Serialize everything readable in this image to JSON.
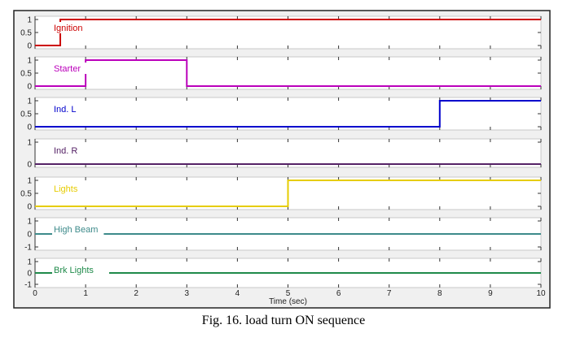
{
  "figure": {
    "caption": "Fig. 16. load turn ON sequence"
  },
  "chart_data": {
    "type": "line",
    "step": true,
    "xlabel": "Time (sec)",
    "xlim": [
      0,
      10
    ],
    "x_ticks": [
      0,
      1,
      2,
      3,
      4,
      5,
      6,
      7,
      8,
      9,
      10
    ],
    "grid": false,
    "legend": "none",
    "series": [
      {
        "name": "Ignition",
        "color": "#cc0000",
        "ylim": [
          0,
          1
        ],
        "y_ticks": [
          {
            "v": 0,
            "t": "0"
          },
          {
            "v": 0.5,
            "t": "0.5"
          },
          {
            "v": 1,
            "t": "1"
          }
        ],
        "points": [
          [
            0,
            0
          ],
          [
            0.5,
            0
          ],
          [
            0.5,
            1
          ],
          [
            10,
            1
          ]
        ]
      },
      {
        "name": "Starter",
        "color": "#bb00bb",
        "ylim": [
          0,
          1
        ],
        "y_ticks": [
          {
            "v": 0,
            "t": "0"
          },
          {
            "v": 0.5,
            "t": "0.5"
          },
          {
            "v": 1,
            "t": "1"
          }
        ],
        "points": [
          [
            0,
            0
          ],
          [
            1,
            0
          ],
          [
            1,
            1
          ],
          [
            3,
            1
          ],
          [
            3,
            0
          ],
          [
            10,
            0
          ]
        ]
      },
      {
        "name": "Ind. L",
        "color": "#0000cc",
        "ylim": [
          0,
          1
        ],
        "y_ticks": [
          {
            "v": 0,
            "t": "0"
          },
          {
            "v": 0.5,
            "t": "0.5"
          },
          {
            "v": 1,
            "t": "1"
          }
        ],
        "points": [
          [
            0,
            0
          ],
          [
            8,
            0
          ],
          [
            8,
            1
          ],
          [
            10,
            1
          ]
        ]
      },
      {
        "name": "Ind. R",
        "color": "#552266",
        "ylim": [
          0,
          1
        ],
        "y_ticks": [
          {
            "v": 0,
            "t": "0"
          },
          {
            "v": 1,
            "t": "1"
          }
        ],
        "points": [
          [
            0,
            0
          ],
          [
            10,
            0
          ]
        ]
      },
      {
        "name": "Lights",
        "color": "#e6cc00",
        "ylim": [
          0,
          1
        ],
        "y_ticks": [
          {
            "v": 0,
            "t": "0"
          },
          {
            "v": 0.5,
            "t": "0.5"
          },
          {
            "v": 1,
            "t": "1"
          }
        ],
        "points": [
          [
            0,
            0
          ],
          [
            5,
            0
          ],
          [
            5,
            1
          ],
          [
            10,
            1
          ]
        ]
      },
      {
        "name": "High Beam",
        "color": "#3d8a8a",
        "ylim": [
          -1,
          1
        ],
        "y_ticks": [
          {
            "v": -1,
            "t": "-1"
          },
          {
            "v": 0,
            "t": "0"
          },
          {
            "v": 1,
            "t": "1"
          }
        ],
        "points": [
          [
            0,
            0
          ],
          [
            10,
            0
          ]
        ]
      },
      {
        "name": "Brk Lights",
        "color": "#1f8a4a",
        "ylim": [
          -1,
          1
        ],
        "y_ticks": [
          {
            "v": -1,
            "t": "-1"
          },
          {
            "v": 0,
            "t": "0"
          },
          {
            "v": 1,
            "t": "1"
          }
        ],
        "points": [
          [
            0,
            0
          ],
          [
            10,
            0
          ]
        ]
      }
    ]
  }
}
